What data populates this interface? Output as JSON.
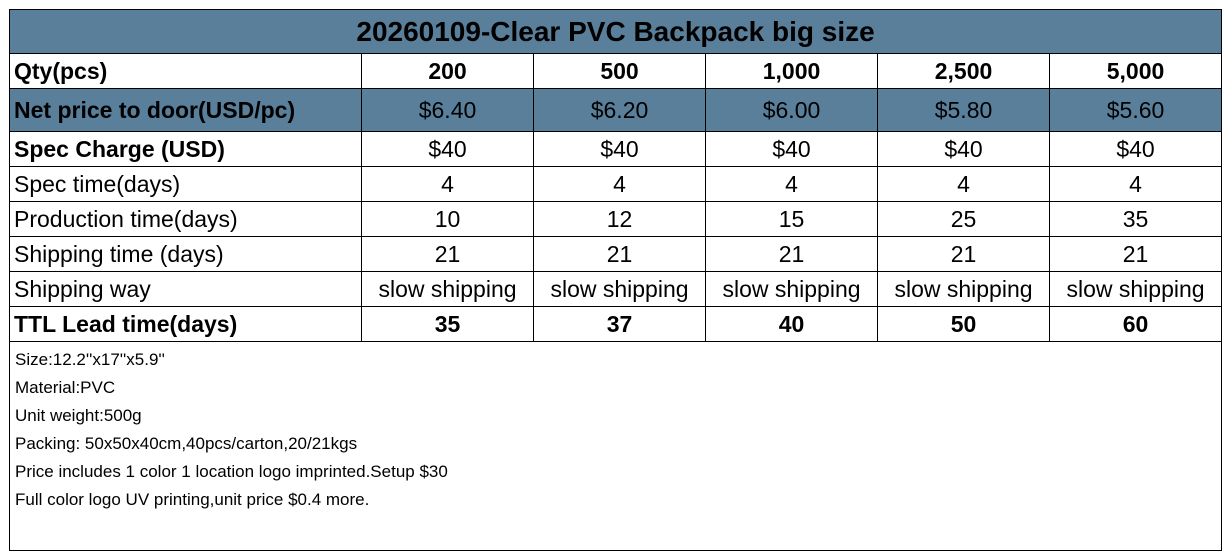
{
  "title": "20260109-Clear PVC Backpack big size",
  "rows": [
    {
      "label": "Qty(pcs)",
      "values": [
        "200",
        "500",
        "1,000",
        "2,500",
        "5,000"
      ]
    },
    {
      "label": "Net price to door(USD/pc)",
      "values": [
        "$6.40",
        "$6.20",
        "$6.00",
        "$5.80",
        "$5.60"
      ]
    },
    {
      "label": "Spec Charge (USD)",
      "values": [
        "$40",
        "$40",
        "$40",
        "$40",
        "$40"
      ]
    },
    {
      "label": "Spec time(days)",
      "values": [
        "4",
        "4",
        "4",
        "4",
        "4"
      ]
    },
    {
      "label": "Production time(days)",
      "values": [
        "10",
        "12",
        "15",
        "25",
        "35"
      ]
    },
    {
      "label": "Shipping time (days)",
      "values": [
        "21",
        "21",
        "21",
        "21",
        "21"
      ]
    },
    {
      "label": "Shipping way",
      "values": [
        "slow shipping",
        "slow shipping",
        "slow shipping",
        "slow shipping",
        "slow shipping"
      ]
    },
    {
      "label": "TTL Lead time(days)",
      "values": [
        "35",
        "37",
        "40",
        "50",
        "60"
      ]
    }
  ],
  "notes": [
    "Size:12.2''x17''x5.9''",
    "Material:PVC",
    "Unit weight:500g",
    "Packing: 50x50x40cm,40pcs/carton,20/21kgs",
    "Price includes 1 color 1 location logo imprinted.Setup $30",
    "Full color logo UV printing,unit price $0.4 more."
  ],
  "colors": {
    "header_fill": "#5a7f9a"
  }
}
